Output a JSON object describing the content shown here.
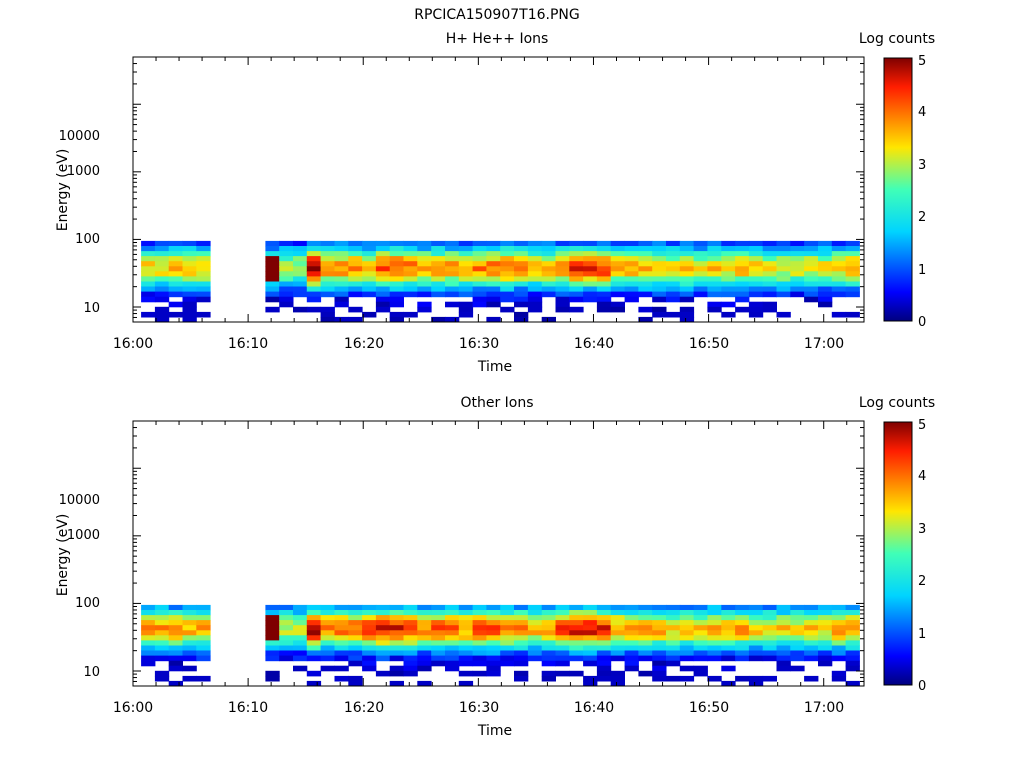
{
  "figure_title": "RPCICA150907T16.PNG",
  "colorbar": {
    "label": "Log counts",
    "range": [
      0,
      5
    ],
    "ticks": [
      "0",
      "1",
      "2",
      "3",
      "4",
      "5"
    ]
  },
  "chart_data": [
    {
      "type": "heatmap",
      "title": "H+ He++ Ions",
      "xlabel": "Time",
      "ylabel": "Energy (eV)",
      "x_ticks": [
        "16:00",
        "16:10",
        "16:20",
        "16:30",
        "16:40",
        "16:50",
        "17:00"
      ],
      "y_ticks": [
        "10",
        "100",
        "1000",
        "10000"
      ],
      "y_scale": "log",
      "ylim": [
        6,
        50000
      ],
      "xlim_minutes": [
        0,
        63.5
      ],
      "data_gap_minutes": [
        7,
        10.5
      ],
      "data_start_minute": 0.7,
      "data_end_minute": 62.6,
      "energy_top_eV": 95,
      "energy_bottom_eV": 6,
      "peak_energy_eV": 38,
      "peak_level_series": [
        3.4,
        3.6,
        3.5,
        3.2,
        3.0,
        5.0,
        3.8,
        3.9,
        3.6,
        4.2,
        4.0,
        3.7,
        3.8,
        3.6,
        3.9,
        4.1,
        3.8,
        3.5,
        3.9,
        4.4,
        4.3,
        3.6,
        3.7,
        3.5,
        3.4,
        3.3,
        3.5,
        3.6,
        3.4,
        3.3,
        3.2,
        3.3,
        3.5,
        3.6
      ],
      "hot_spot": {
        "time": "16:10",
        "level": 5
      }
    },
    {
      "type": "heatmap",
      "title": "Other Ions",
      "xlabel": "Time",
      "ylabel": "Energy (eV)",
      "x_ticks": [
        "16:00",
        "16:10",
        "16:20",
        "16:30",
        "16:40",
        "16:50",
        "17:00"
      ],
      "y_ticks": [
        "10",
        "100",
        "1000",
        "10000"
      ],
      "y_scale": "log",
      "ylim": [
        6,
        50000
      ],
      "xlim_minutes": [
        0,
        63.5
      ],
      "data_gap_minutes": [
        7,
        10.5
      ],
      "data_start_minute": 0.7,
      "data_end_minute": 62.6,
      "energy_top_eV": 95,
      "energy_bottom_eV": 6,
      "peak_energy_eV": 42,
      "peak_level_series": [
        3.8,
        3.9,
        3.6,
        3.3,
        3.1,
        5.0,
        3.9,
        4.1,
        4.3,
        4.5,
        4.3,
        3.9,
        4.1,
        3.8,
        4.2,
        4.0,
        3.9,
        3.6,
        4.2,
        4.6,
        4.4,
        3.8,
        3.7,
        3.6,
        3.5,
        3.4,
        3.6,
        3.7,
        3.5,
        3.4,
        3.3,
        3.4,
        3.7,
        3.8
      ],
      "hot_spot": {
        "time": "16:10",
        "level": 5
      }
    }
  ]
}
